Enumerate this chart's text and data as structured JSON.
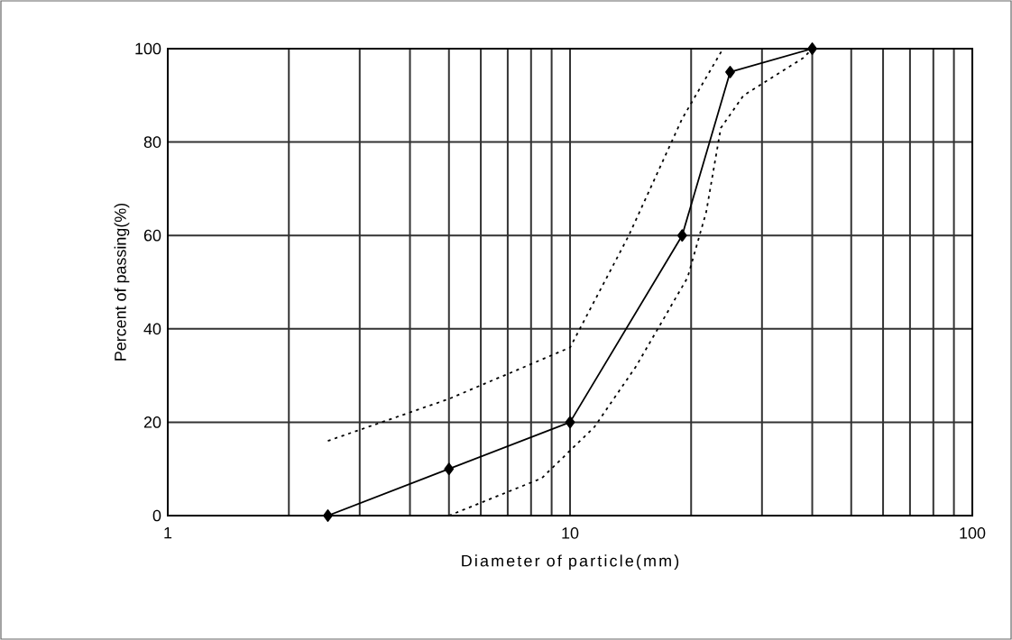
{
  "chart_data": {
    "type": "line",
    "xlabel": "Diameter of particle(mm)",
    "ylabel": "Percent of passing(%)",
    "log": "x",
    "xlim": [
      1,
      100
    ],
    "xticks": [
      1,
      10,
      100
    ],
    "ylim": [
      0,
      100
    ],
    "yticks": [
      0,
      20,
      40,
      60,
      80,
      100
    ],
    "grid": true,
    "series": [
      {
        "color": "#000000",
        "marker": "diamond",
        "line_style": "solid",
        "x": [
          2.5,
          5,
          10,
          19,
          25,
          40
        ],
        "values": [
          0,
          10,
          20,
          60,
          95,
          100
        ]
      },
      {
        "color": "#000000",
        "marker": "none",
        "line_style": "dotted",
        "x": [
          2.5,
          5,
          10,
          14,
          19,
          24
        ],
        "values": [
          16,
          25,
          36,
          60,
          85,
          100
        ]
      },
      {
        "color": "#000000",
        "marker": "none",
        "line_style": "dotted",
        "x": [
          5,
          8.5,
          11.5,
          14.6,
          19.6,
          21.8,
          23.7,
          27,
          38,
          40
        ],
        "values": [
          0,
          8,
          19,
          32,
          51,
          65,
          83,
          90,
          98,
          100
        ]
      }
    ]
  }
}
